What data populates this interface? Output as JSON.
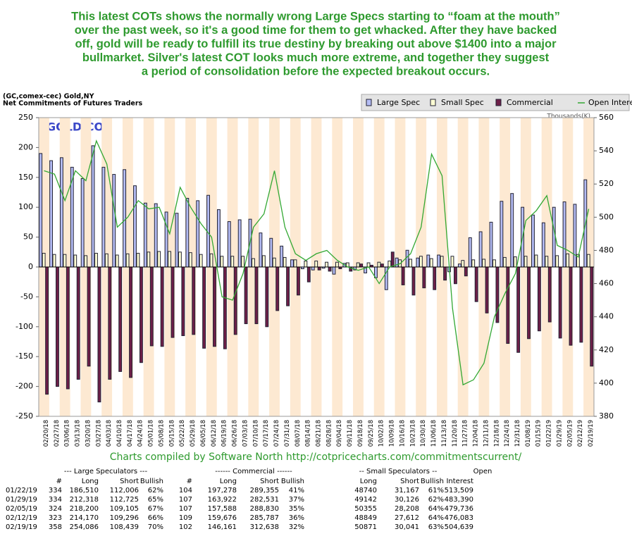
{
  "headline": [
    "This latest COTs shows the normally wrong Large Specs starting to “foam at the mouth”",
    "over the past week, so it's a good time for them to get whacked. After they have backed",
    "off, gold will be ready to fulfill its true destiny by breaking out above $1400 into a major",
    "bullmarket. Silver's latest COT looks much more extreme, and together they suggest",
    "a period of consolidation before the expected breakout occurs."
  ],
  "chart_data": {
    "type": "bar",
    "title": "(GC,comex-cec) Gold,NY",
    "subtitle": "Net Commitments of Futures Traders",
    "annotation": "GOLD COT",
    "y2_label": "Thousands(K)",
    "categories": [
      "02/20/18",
      "02/27/18",
      "03/06/18",
      "03/13/18",
      "03/20/18",
      "03/27/18",
      "04/03/18",
      "04/10/18",
      "04/17/18",
      "04/24/18",
      "05/01/18",
      "05/08/18",
      "05/15/18",
      "05/22/18",
      "05/29/18",
      "06/05/18",
      "06/12/18",
      "06/19/18",
      "06/26/18",
      "07/03/18",
      "07/10/18",
      "07/17/18",
      "07/24/18",
      "07/31/18",
      "08/07/18",
      "08/14/18",
      "08/21/18",
      "08/28/18",
      "09/04/18",
      "09/11/18",
      "09/18/18",
      "09/25/18",
      "10/02/18",
      "10/09/18",
      "10/16/18",
      "10/23/18",
      "10/30/18",
      "11/06/18",
      "11/13/18",
      "11/20/18",
      "11/27/18",
      "12/04/18",
      "12/11/18",
      "12/18/18",
      "12/24/18",
      "12/31/18",
      "01/08/19",
      "01/15/19",
      "01/22/19",
      "01/29/19",
      "02/05/19",
      "02/12/19",
      "02/19/19"
    ],
    "series": [
      {
        "name": "Large Spec",
        "color": "#b4bcf4",
        "values": [
          190,
          178,
          183,
          167,
          148,
          203,
          167,
          155,
          163,
          136,
          107,
          106,
          92,
          90,
          115,
          111,
          120,
          96,
          76,
          79,
          80,
          57,
          48,
          35,
          12,
          -3,
          -5,
          -2,
          -12,
          6,
          -5,
          -10,
          -18,
          -38,
          15,
          28,
          15,
          20,
          20,
          -8,
          5,
          49,
          59,
          75,
          110,
          123,
          100,
          87,
          74,
          100,
          109,
          105,
          146
        ]
      },
      {
        "name": "Small Spec",
        "color": "#ffffd4",
        "values": [
          23,
          21,
          21,
          20,
          19,
          23,
          22,
          20,
          22,
          23,
          25,
          26,
          26,
          25,
          24,
          21,
          22,
          18,
          18,
          18,
          14,
          19,
          15,
          16,
          12,
          10,
          10,
          8,
          8,
          7,
          7,
          7,
          8,
          10,
          12,
          13,
          18,
          14,
          18,
          18,
          11,
          12,
          13,
          12,
          16,
          17,
          18,
          20,
          18,
          19,
          22,
          21,
          21
        ]
      },
      {
        "name": "Commercial",
        "color": "#6e1f48",
        "values": [
          -213,
          -200,
          -204,
          -188,
          -166,
          -226,
          -188,
          -175,
          -185,
          -160,
          -132,
          -133,
          -118,
          -115,
          -113,
          -136,
          -133,
          -137,
          -113,
          -95,
          -95,
          -100,
          -73,
          -65,
          -47,
          -25,
          -5,
          -7,
          -3,
          -7,
          5,
          3,
          5,
          25,
          -30,
          -47,
          -35,
          -38,
          -22,
          -28,
          -15,
          -58,
          -77,
          -93,
          -128,
          -143,
          -120,
          -107,
          -92,
          -119,
          -131,
          -126,
          -166
        ]
      },
      {
        "name": "Open Interest",
        "color": "#33a833",
        "axis": "y2",
        "values": [
          528,
          526,
          510,
          528,
          522,
          546,
          532,
          494,
          500,
          510,
          505,
          506,
          490,
          518,
          506,
          496,
          488,
          452,
          450,
          466,
          494,
          502,
          528,
          494,
          478,
          474,
          478,
          480,
          474,
          470,
          468,
          470,
          460,
          470,
          472,
          478,
          494,
          538,
          525,
          445,
          399,
          402,
          412,
          440,
          454,
          466,
          498,
          504,
          513,
          483,
          480,
          476,
          505
        ]
      }
    ],
    "ylim": [
      -250,
      250
    ],
    "yticks": [
      -250,
      -200,
      -150,
      -100,
      -50,
      0,
      50,
      100,
      150,
      200,
      250
    ],
    "y2lim": [
      380,
      560
    ],
    "y2ticks": [
      380,
      400,
      420,
      440,
      460,
      480,
      500,
      520,
      540,
      560
    ]
  },
  "footer": "Charts compiled by Software North  http://cotpricecharts.com/commitmentscurrent/",
  "table": {
    "groups": [
      "--- Large Speculators ---",
      "------ Commercial ------",
      "-- Small Speculators --",
      "Open"
    ],
    "columns": [
      "#",
      "Long",
      "Short",
      "Bullish",
      "#",
      "Long",
      "Short",
      "Bullish",
      "Long",
      "Short",
      "Bullish",
      "Interest"
    ],
    "rows": [
      [
        "01/22/19",
        "334",
        "186,510",
        "112,006",
        "62%",
        "104",
        "197,278",
        "289,355",
        "41%",
        "48740",
        "31,167",
        "61%",
        "513,509"
      ],
      [
        "01/29/19",
        "334",
        "212,318",
        "112,725",
        "65%",
        "107",
        "163,922",
        "282,531",
        "37%",
        "49142",
        "30,126",
        "62%",
        "483,390"
      ],
      [
        "02/05/19",
        "324",
        "218,200",
        "109,105",
        "67%",
        "107",
        "157,588",
        "288,830",
        "35%",
        "50355",
        "28,208",
        "64%",
        "479,736"
      ],
      [
        "02/12/19",
        "323",
        "214,170",
        "109,296",
        "66%",
        "109",
        "159,676",
        "285,787",
        "36%",
        "48849",
        "27,612",
        "64%",
        "476,083"
      ],
      [
        "02/19/19",
        "358",
        "254,086",
        "108,439",
        "70%",
        "102",
        "146,161",
        "312,638",
        "32%",
        "50871",
        "30,041",
        "63%",
        "504,639"
      ]
    ]
  }
}
